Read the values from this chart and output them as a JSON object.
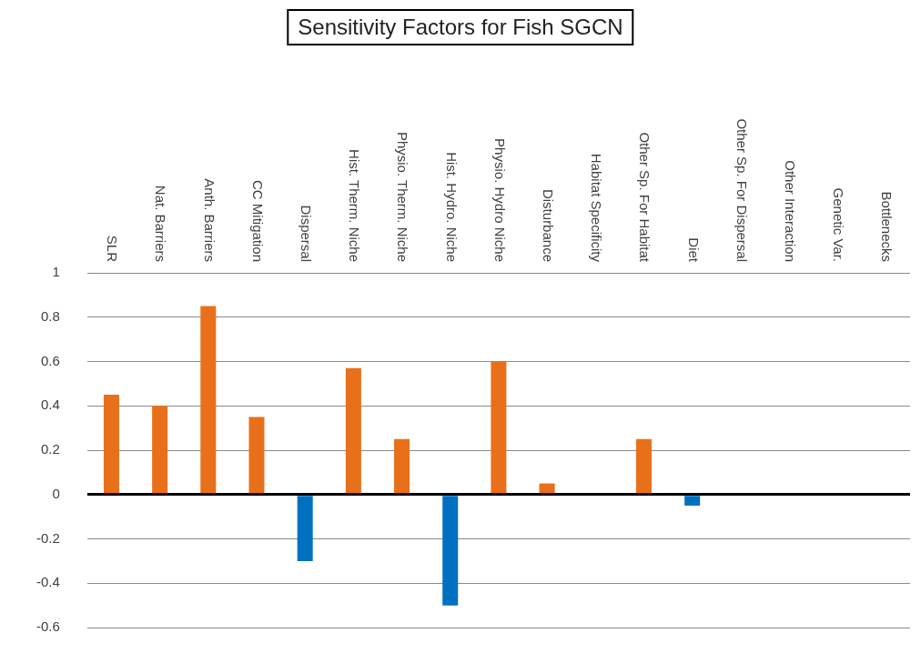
{
  "chart_data": {
    "type": "bar",
    "title": "Sensitivity Factors for Fish SGCN",
    "categories": [
      "SLR",
      "Nat. Barriers",
      "Anth. Barriers",
      "CC Mitigation",
      "Dispersal",
      "Hist. Therm. Niche",
      "Physio. Therm. Niche",
      "Hist. Hydro. Niche",
      "Physio. Hydro Niche",
      "Disturbance",
      "Habitat Specificity",
      "Other Sp. For Habitat",
      "Diet",
      "Other Sp. For Dispersal",
      "Other Interaction",
      "Genetic Var.",
      "Bottlenecks"
    ],
    "values": [
      0.45,
      0.4,
      0.85,
      0.35,
      -0.3,
      0.57,
      0.25,
      -0.5,
      0.6,
      0.05,
      0,
      0.25,
      -0.05,
      0,
      0,
      0,
      0
    ],
    "colors": [
      "#e8701a",
      "#e8701a",
      "#e8701a",
      "#e8701a",
      "#0070c0",
      "#e8701a",
      "#e8701a",
      "#0070c0",
      "#e8701a",
      "#e8701a",
      "#e8701a",
      "#e8701a",
      "#0070c0",
      "#e8701a",
      "#e8701a",
      "#e8701a",
      "#e8701a"
    ],
    "ylim": [
      -0.6,
      1
    ],
    "yticks": [
      -0.6,
      -0.4,
      -0.2,
      0,
      0.2,
      0.4,
      0.6,
      0.8,
      1
    ],
    "grid": "y",
    "legend": false
  }
}
